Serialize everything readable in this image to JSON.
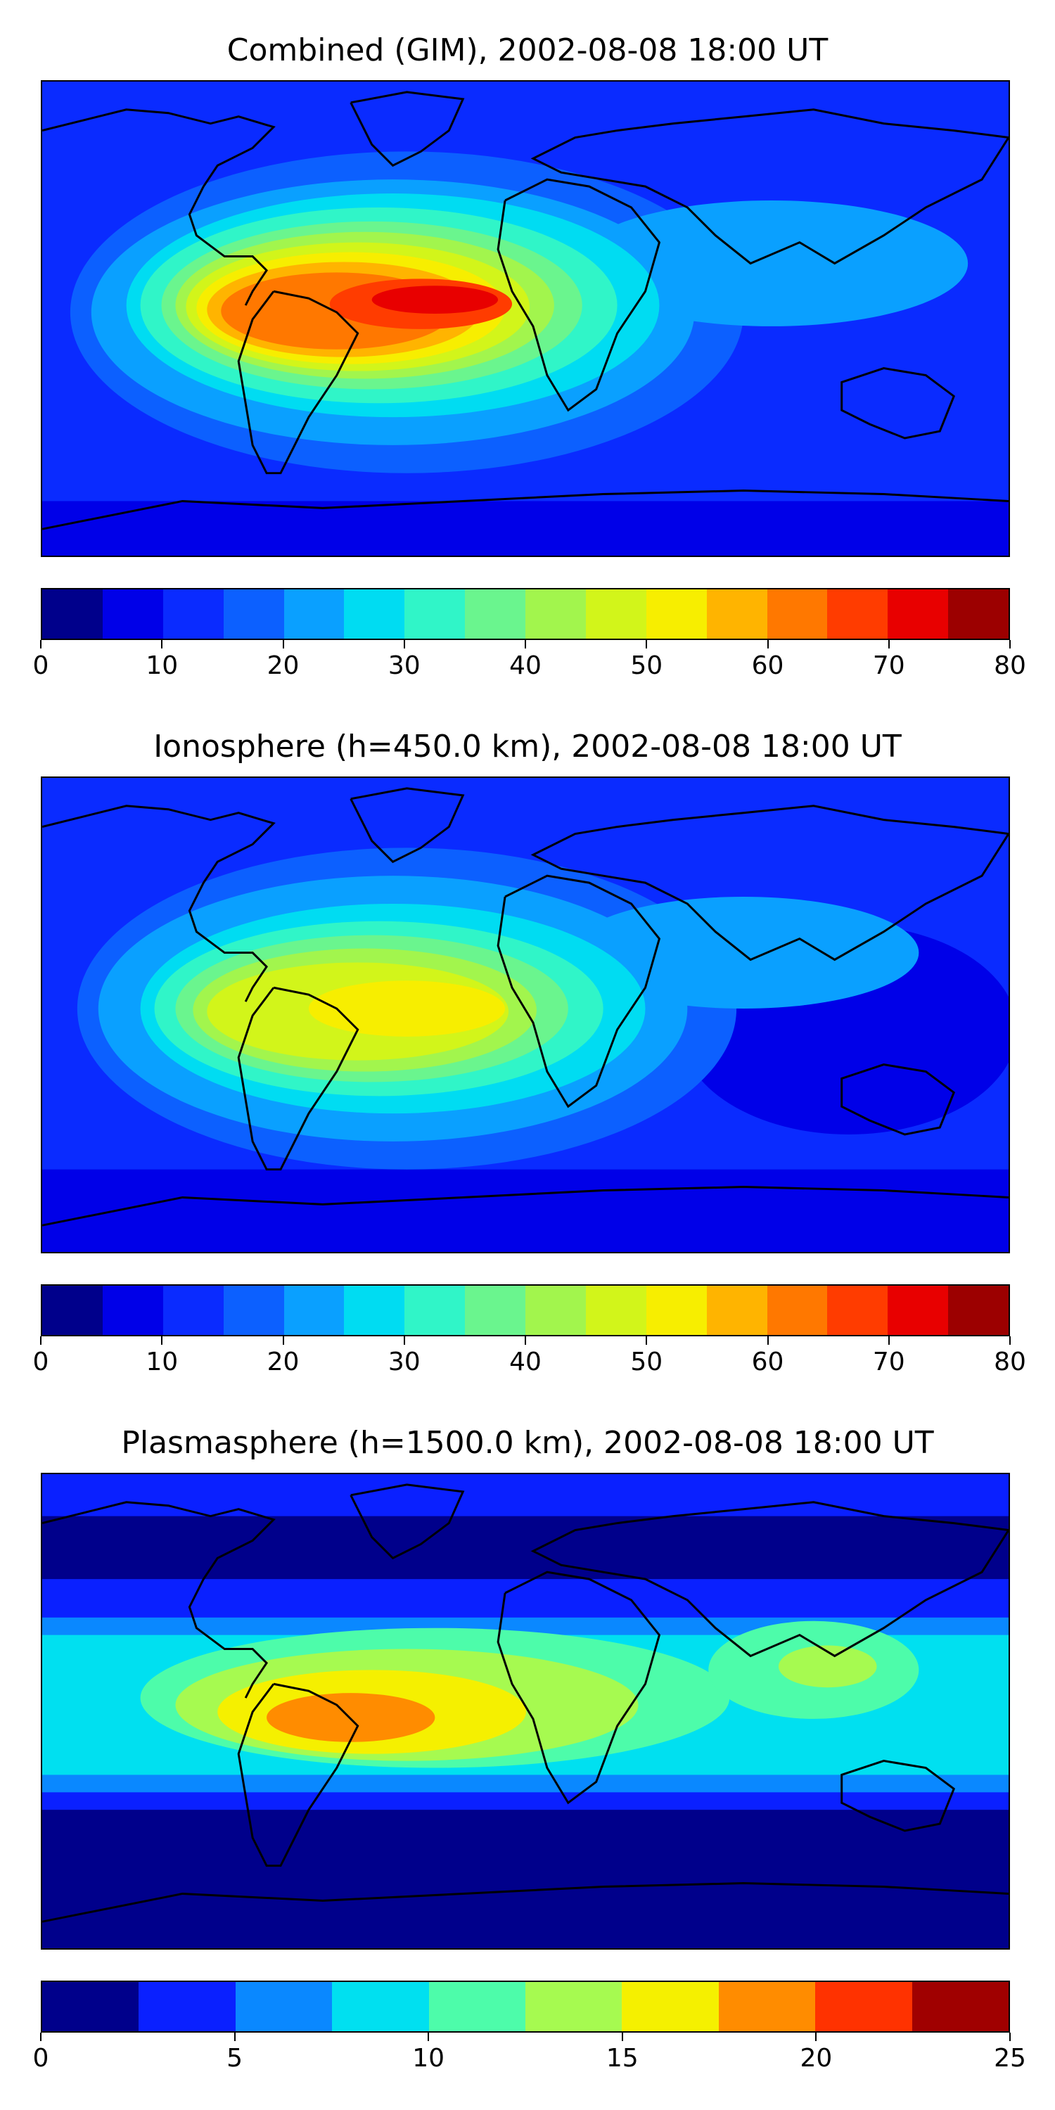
{
  "panels": [
    {
      "title": "Combined (GIM), 2002-08-08 18:00 UT",
      "colorbar": {
        "colors": [
          "#00008b",
          "#0000e8",
          "#0a2bff",
          "#0c60ff",
          "#0aa0ff",
          "#00dcf2",
          "#30f5c8",
          "#6af58e",
          "#a2f54d",
          "#d2f51a",
          "#f7ee00",
          "#ffb400",
          "#ff7800",
          "#ff3c00",
          "#e80000",
          "#9c0000"
        ],
        "ticks": [
          "0",
          "10",
          "20",
          "30",
          "40",
          "50",
          "60",
          "70",
          "80"
        ]
      }
    },
    {
      "title": "Ionosphere  (h=450.0 km), 2002-08-08 18:00 UT",
      "colorbar": {
        "colors": [
          "#00008b",
          "#0000e8",
          "#0a2bff",
          "#0c60ff",
          "#0aa0ff",
          "#00dcf2",
          "#30f5c8",
          "#6af58e",
          "#a2f54d",
          "#d2f51a",
          "#f7ee00",
          "#ffb400",
          "#ff7800",
          "#ff3c00",
          "#e80000",
          "#9c0000"
        ],
        "ticks": [
          "0",
          "10",
          "20",
          "30",
          "40",
          "50",
          "60",
          "70",
          "80"
        ]
      }
    },
    {
      "title": "Plasmasphere (h=1500.0 km), 2002-08-08 18:00 UT",
      "colorbar": {
        "colors": [
          "#00008b",
          "#0a20ff",
          "#0a88ff",
          "#00e0f0",
          "#4dfcaa",
          "#a6fa50",
          "#f5f000",
          "#ff8c00",
          "#ff3200",
          "#a00000"
        ],
        "ticks": [
          "0",
          "5",
          "10",
          "15",
          "20",
          "25"
        ]
      }
    }
  ]
}
